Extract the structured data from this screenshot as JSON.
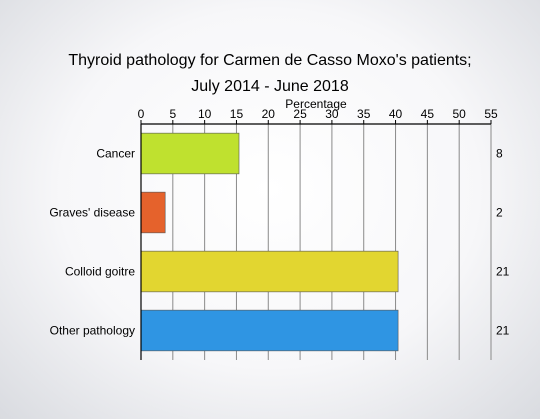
{
  "chart_data": {
    "type": "bar",
    "orientation": "horizontal",
    "title_lines": [
      "Thyroid pathology for Carmen de Casso Moxo's patients;",
      "July 2014 - June 2018"
    ],
    "xlabel": "Percentage",
    "xlim": [
      0,
      55
    ],
    "xticks": [
      0,
      5,
      10,
      15,
      20,
      25,
      30,
      35,
      40,
      45,
      50,
      55
    ],
    "grid": true,
    "categories": [
      "Cancer",
      "Graves' disease",
      "Colloid goitre",
      "Other pathology"
    ],
    "values": [
      15.4,
      3.8,
      40.4,
      40.4
    ],
    "counts": [
      "8",
      "2",
      "21",
      "21"
    ],
    "colors": [
      "#bfe12f",
      "#e5622c",
      "#e2d630",
      "#2f95e3"
    ]
  }
}
